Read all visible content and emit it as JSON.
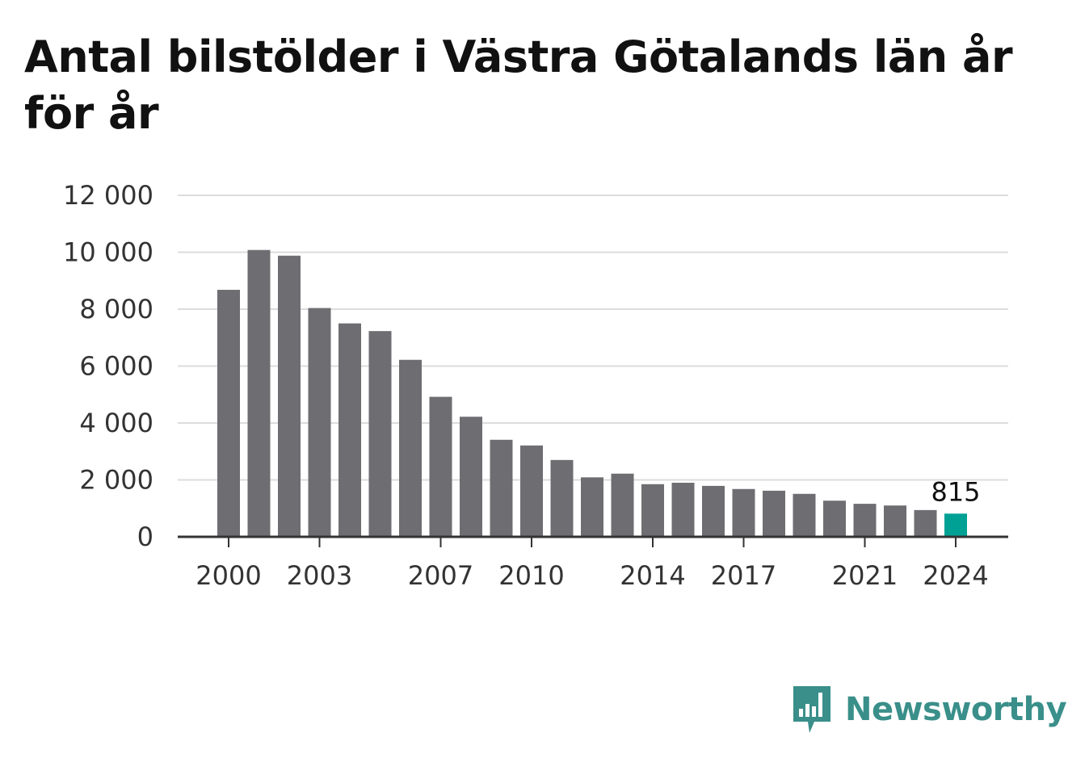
{
  "title": "Antal bilstölder i Västra Götalands län år för år",
  "brand": {
    "name": "Newsworthy",
    "icon": "newsworthy-logo-icon",
    "color": "#3a8f8a"
  },
  "colors": {
    "bar": "#6e6d72",
    "highlight": "#00a195",
    "grid": "#dcdcdc",
    "axis": "#333333"
  },
  "chart_data": {
    "type": "bar",
    "title": "Antal bilstölder i Västra Götalands län år för år",
    "xlabel": "",
    "ylabel": "",
    "ylim": [
      0,
      12000
    ],
    "y_ticks": [
      0,
      2000,
      4000,
      6000,
      8000,
      10000,
      12000
    ],
    "y_tick_labels": [
      "0",
      "2 000",
      "4 000",
      "6 000",
      "8 000",
      "10 000",
      "12 000"
    ],
    "x_tick_labels": [
      "2000",
      "2003",
      "2007",
      "2010",
      "2014",
      "2017",
      "2021",
      "2024"
    ],
    "categories": [
      "2000",
      "2001",
      "2002",
      "2003",
      "2004",
      "2005",
      "2006",
      "2007",
      "2008",
      "2009",
      "2010",
      "2011",
      "2012",
      "2013",
      "2014",
      "2015",
      "2016",
      "2017",
      "2018",
      "2019",
      "2020",
      "2021",
      "2022",
      "2023",
      "2024"
    ],
    "values": [
      8680,
      10080,
      9880,
      8040,
      7500,
      7230,
      6220,
      4920,
      4220,
      3410,
      3210,
      2700,
      2090,
      2220,
      1850,
      1900,
      1790,
      1680,
      1620,
      1510,
      1270,
      1160,
      1100,
      940,
      815
    ],
    "highlight_category": "2024",
    "annotation": "815",
    "grid": true
  }
}
